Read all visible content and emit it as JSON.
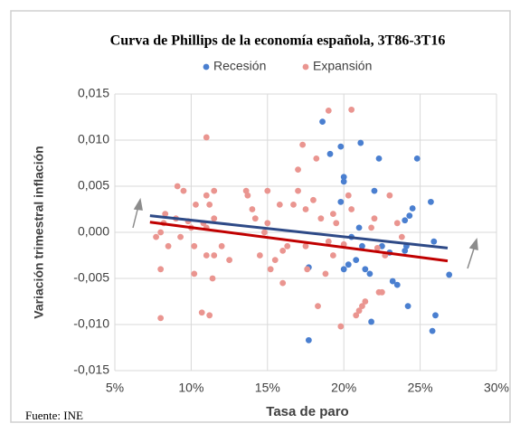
{
  "chart_data": {
    "type": "scatter",
    "title": "Curva de Phillips de la economía española, 3T86-3T16",
    "xlabel": "Tasa de paro",
    "ylabel": "Variación trimestral inflación",
    "source": "Fuente: INE",
    "xlim": [
      5,
      30
    ],
    "ylim": [
      -0.015,
      0.015
    ],
    "xticks": [
      {
        "value": 5,
        "label": "5%"
      },
      {
        "value": 10,
        "label": "10%"
      },
      {
        "value": 15,
        "label": "15%"
      },
      {
        "value": 20,
        "label": "20%"
      },
      {
        "value": 25,
        "label": "25%"
      },
      {
        "value": 30,
        "label": "30%"
      }
    ],
    "yticks": [
      {
        "value": -0.015,
        "label": "-0,015"
      },
      {
        "value": -0.01,
        "label": "-0,010"
      },
      {
        "value": -0.005,
        "label": "-0,005"
      },
      {
        "value": 0,
        "label": "0,000"
      },
      {
        "value": 0.005,
        "label": "0,005"
      },
      {
        "value": 0.01,
        "label": "0,010"
      },
      {
        "value": 0.015,
        "label": "0,015"
      }
    ],
    "grid": true,
    "legend": "top",
    "series": [
      {
        "name": "Recesión",
        "color": "#4a7fd0",
        "x": [
          18.6,
          19.1,
          19.8,
          20.0,
          20.0,
          21.1,
          22.3,
          24.8,
          19.8,
          21.0,
          20.3,
          20.0,
          20.8,
          21.4,
          21.7,
          23.0,
          24.1,
          24.0,
          24.5,
          24.3,
          23.2,
          23.5,
          21.8,
          24.2,
          25.7,
          25.9,
          26.9,
          26.0,
          25.8,
          17.7,
          17.7,
          22.0,
          20.5,
          21.2,
          24.0,
          22.5
        ],
        "values": [
          0.012,
          0.0085,
          0.0093,
          0.006,
          0.0055,
          0.0097,
          0.008,
          0.008,
          0.0033,
          0.0005,
          -0.0035,
          -0.004,
          -0.003,
          -0.004,
          -0.0045,
          -0.0022,
          -0.0015,
          0.0013,
          0.0026,
          0.0018,
          -0.0053,
          -0.0057,
          -0.0097,
          -0.008,
          0.0033,
          -0.001,
          -0.0046,
          -0.009,
          -0.0107,
          -0.0117,
          -0.0038,
          0.0045,
          -0.0005,
          -0.0015,
          -0.002,
          -0.0015
        ]
      },
      {
        "name": "Expansión",
        "color": "#ea9590",
        "x": [
          8.0,
          8.0,
          8.2,
          8.3,
          7.7,
          8.0,
          8.5,
          9.1,
          9.5,
          9.0,
          9.3,
          9.8,
          10.0,
          10.2,
          10.3,
          10.2,
          10.7,
          11.0,
          11.2,
          11.0,
          11.5,
          11.2,
          11.0,
          11.5,
          11.0,
          11.5,
          11.4,
          10.8,
          12.0,
          13.6,
          13.7,
          14.0,
          14.2,
          14.5,
          15.0,
          15.0,
          15.2,
          15.5,
          15.8,
          16.0,
          16.3,
          16.7,
          17.0,
          17.3,
          17.0,
          17.5,
          17.6,
          17.5,
          18.0,
          18.2,
          18.3,
          18.5,
          19.0,
          19.0,
          19.3,
          19.5,
          19.8,
          20.0,
          20.5,
          20.5,
          20.8,
          21.0,
          21.2,
          21.4,
          21.8,
          22.0,
          22.2,
          22.5,
          22.7,
          23.0,
          23.5,
          23.8,
          19.3,
          16.0,
          14.8,
          12.5,
          18.8,
          20.3,
          22.3
        ],
        "values": [
          -0.0093,
          -0.004,
          0.001,
          0.002,
          -0.0005,
          0,
          -0.0015,
          0.005,
          0.0045,
          0.0015,
          -0.0005,
          0.0012,
          0.0005,
          -0.0015,
          0.003,
          -0.0045,
          -0.0087,
          0.0103,
          -0.009,
          0.004,
          0.0045,
          0.003,
          0.0005,
          0.0015,
          -0.0025,
          -0.0025,
          -0.005,
          0.001,
          -0.0015,
          0.0045,
          0.004,
          0.0025,
          0.0015,
          -0.0025,
          0.0045,
          0.001,
          -0.004,
          -0.003,
          0.003,
          -0.0055,
          -0.0015,
          0.003,
          0.0045,
          0.0095,
          0.0068,
          0.0025,
          -0.004,
          -0.0015,
          0.0035,
          0.008,
          -0.008,
          0.0015,
          0.0132,
          -0.001,
          -0.0025,
          0.001,
          -0.0102,
          -0.0013,
          0.0133,
          0.0025,
          -0.009,
          -0.0085,
          -0.008,
          -0.0075,
          0.0005,
          0.0015,
          -0.0017,
          -0.0065,
          -0.0025,
          0.004,
          0.001,
          -0.0005,
          0.002,
          -0.002,
          0,
          -0.003,
          -0.0045,
          0.004,
          -0.0065
        ]
      }
    ],
    "trendlines": [
      {
        "color": "#2e4a87",
        "x": [
          7.3,
          26.8
        ],
        "y": [
          0.0018,
          -0.0017
        ]
      },
      {
        "color": "#c00000",
        "x": [
          7.3,
          26.8
        ],
        "y": [
          0.0011,
          -0.0031
        ]
      }
    ]
  }
}
